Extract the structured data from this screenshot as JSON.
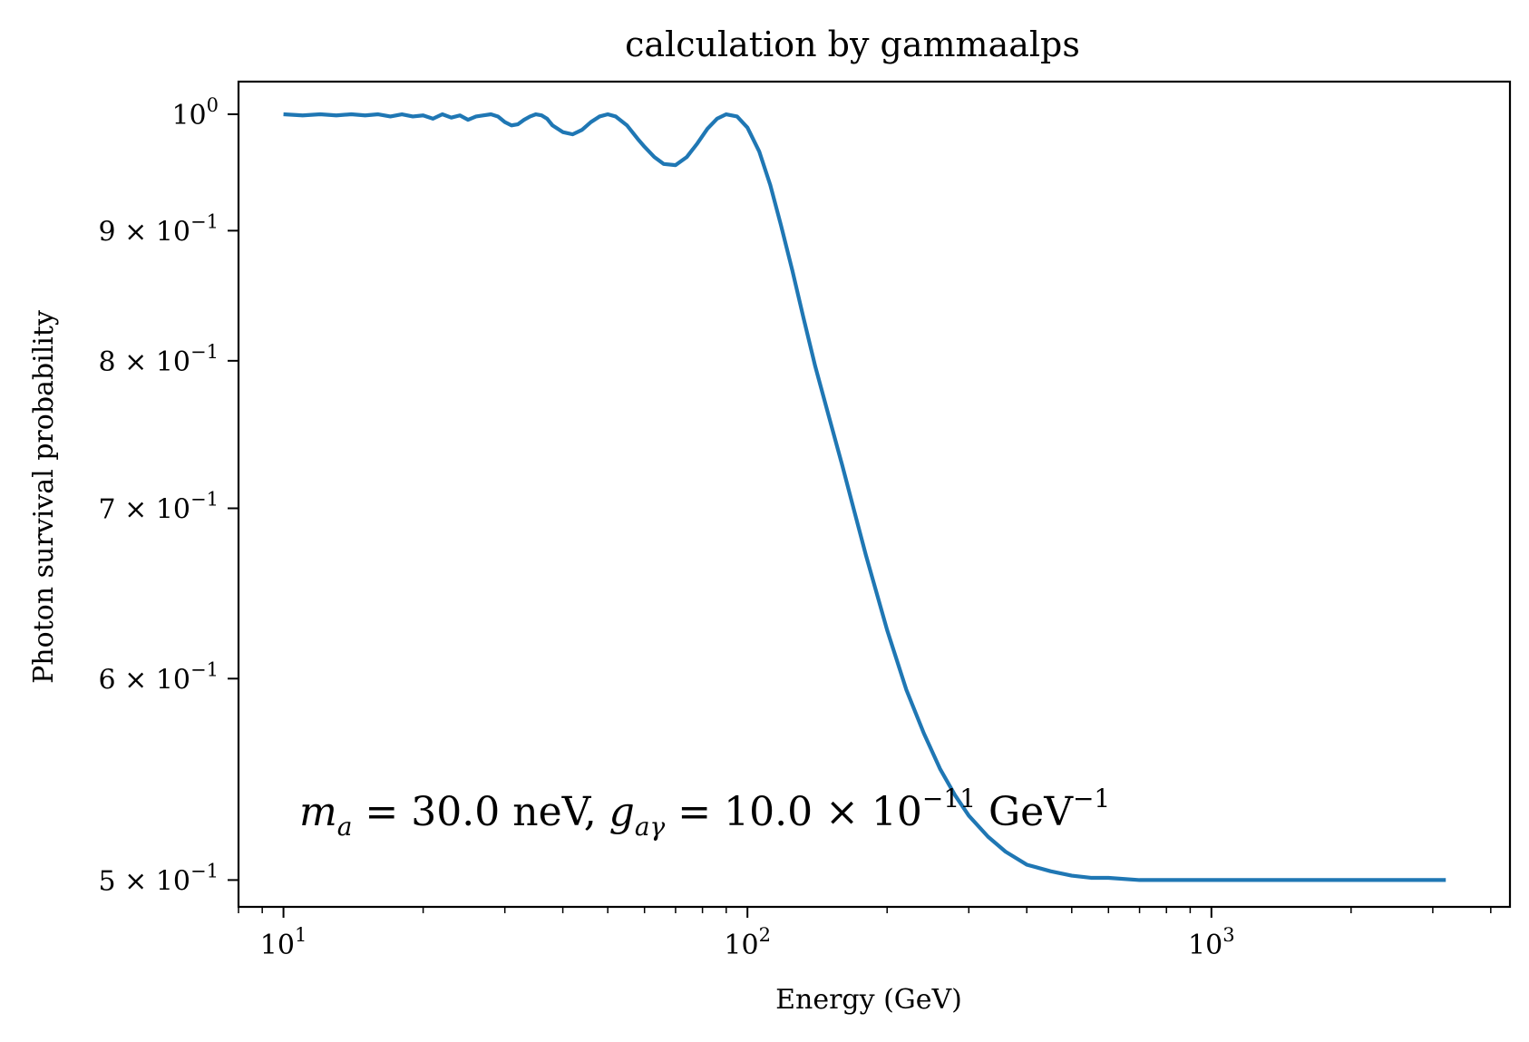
{
  "chart_data": {
    "type": "line",
    "title": "calculation by gammaalps",
    "xlabel": "Energy (GeV)",
    "ylabel": "Photon survival probability",
    "x_scale": "log",
    "y_scale": "log",
    "xlim": [
      8.0,
      4400
    ],
    "ylim": [
      0.488,
      1.03
    ],
    "grid": false,
    "x_major_ticks": [
      {
        "value": 10,
        "base": "10",
        "exp": "1"
      },
      {
        "value": 100,
        "base": "10",
        "exp": "2"
      },
      {
        "value": 1000,
        "base": "10",
        "exp": "3"
      }
    ],
    "y_major_ticks": [
      {
        "value": 1.0,
        "mant": "",
        "base": "10",
        "exp": "0"
      },
      {
        "value": 0.9,
        "mant": "9 × ",
        "base": "10",
        "exp": "−1"
      },
      {
        "value": 0.8,
        "mant": "8 × ",
        "base": "10",
        "exp": "−1"
      },
      {
        "value": 0.7,
        "mant": "7 × ",
        "base": "10",
        "exp": "−1"
      },
      {
        "value": 0.6,
        "mant": "6 × ",
        "base": "10",
        "exp": "−1"
      },
      {
        "value": 0.5,
        "mant": "5 × ",
        "base": "10",
        "exp": "−1"
      }
    ],
    "annotation": {
      "text": "m_a = 30.0 neV, g_{aγ} = 10.0 × 10^{−11} GeV^{−1}",
      "m": "m",
      "m_sub": "a",
      "eq1": " = 30.0 neV, ",
      "g": "g",
      "g_sub": "aγ",
      "eq2": " = 10.0 × 10",
      "exp1": "−11",
      "unit": " GeV",
      "exp2": "−1"
    },
    "series": [
      {
        "color": "#1f77b4",
        "x": [
          10.0,
          11.0,
          12.0,
          13.0,
          14.0,
          15.0,
          16.0,
          17.0,
          18.0,
          19.0,
          20.0,
          21.0,
          22.0,
          23.0,
          24.0,
          25.0,
          26.0,
          27.0,
          28.0,
          29.0,
          30.0,
          31.0,
          32.0,
          33.0,
          34.0,
          35.0,
          36.0,
          37.0,
          38.0,
          40.0,
          42.0,
          44.0,
          46.0,
          48.0,
          50.0,
          52.0,
          55.0,
          58.0,
          60.0,
          63.0,
          66.0,
          70.0,
          74.0,
          78.0,
          82.0,
          86.0,
          90.0,
          95.0,
          100.0,
          106.0,
          112.0,
          118.0,
          125.0,
          132.0,
          140.0,
          150.0,
          160.0,
          170.0,
          180.0,
          200.0,
          220.0,
          240.0,
          260.0,
          280.0,
          300.0,
          330.0,
          360.0,
          400.0,
          450.0,
          500.0,
          550.0,
          600.0,
          700.0,
          800.0,
          900.0,
          1000.0,
          1200.0,
          1400.0,
          1600.0,
          1800.0,
          2000.0,
          2300.0,
          2600.0,
          3000.0,
          3200.0
        ],
        "y": [
          1.0,
          0.999,
          1.0,
          0.999,
          1.0,
          0.999,
          1.0,
          0.998,
          1.0,
          0.998,
          0.999,
          0.996,
          1.0,
          0.997,
          0.999,
          0.995,
          0.998,
          0.999,
          1.0,
          0.998,
          0.993,
          0.99,
          0.991,
          0.995,
          0.998,
          1.0,
          0.999,
          0.996,
          0.99,
          0.984,
          0.982,
          0.986,
          0.993,
          0.998,
          1.0,
          0.998,
          0.99,
          0.978,
          0.971,
          0.962,
          0.956,
          0.955,
          0.962,
          0.974,
          0.987,
          0.996,
          1.0,
          0.998,
          0.988,
          0.967,
          0.938,
          0.905,
          0.868,
          0.832,
          0.796,
          0.76,
          0.728,
          0.698,
          0.671,
          0.627,
          0.594,
          0.571,
          0.553,
          0.54,
          0.53,
          0.52,
          0.513,
          0.507,
          0.504,
          0.502,
          0.501,
          0.501,
          0.5,
          0.5,
          0.5,
          0.5,
          0.5,
          0.5,
          0.5,
          0.5,
          0.5,
          0.5,
          0.5,
          0.5,
          0.5
        ]
      }
    ]
  }
}
